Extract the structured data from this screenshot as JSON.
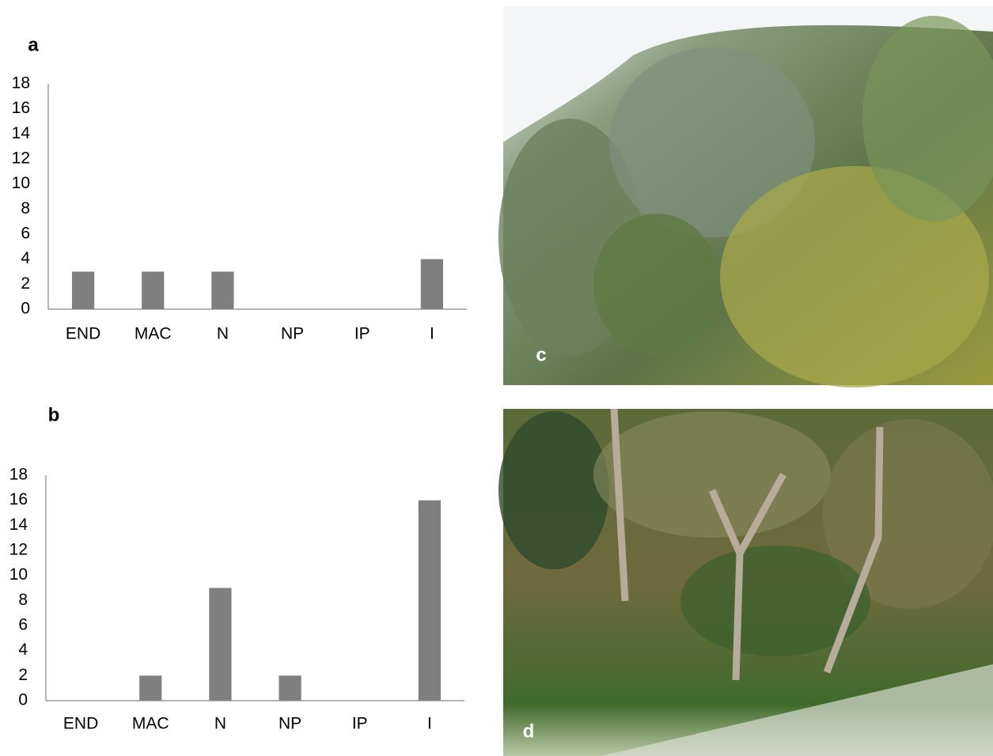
{
  "chart_data": [
    {
      "type": "bar",
      "title": "a",
      "categories": [
        "END",
        "MAC",
        "N",
        "NP",
        "IP",
        "I"
      ],
      "values": [
        3,
        3,
        3,
        0,
        0,
        4
      ],
      "color": "#7f7f7f",
      "ylim": [
        0,
        18
      ],
      "yticks": [
        0,
        2,
        4,
        6,
        8,
        10,
        12,
        14,
        16,
        18
      ],
      "grid": false
    },
    {
      "type": "bar",
      "title": "b",
      "categories": [
        "END",
        "MAC",
        "N",
        "NP",
        "IP",
        "I"
      ],
      "values": [
        0,
        2,
        9,
        2,
        0,
        16
      ],
      "color": "#7f7f7f",
      "ylim": [
        0,
        18
      ],
      "yticks": [
        0,
        2,
        4,
        6,
        8,
        10,
        12,
        14,
        16,
        18
      ],
      "grid": false
    }
  ],
  "photos": [
    {
      "label": "c"
    },
    {
      "label": "d"
    }
  ]
}
